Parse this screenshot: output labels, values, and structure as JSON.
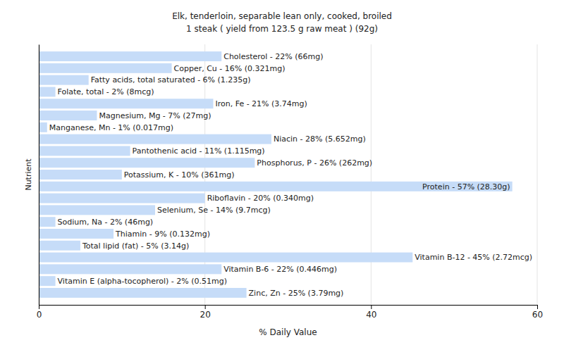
{
  "chart_data": {
    "type": "bar",
    "orientation": "horizontal",
    "title": "Elk, tenderloin, separable lean only, cooked, broiled",
    "subtitle": "1 steak ( yield from 123.5 g raw meat ) (92g)",
    "x_label": "% Daily Value",
    "y_label": "Nutrient",
    "categories": [
      null,
      null,
      null,
      null,
      null,
      null,
      null,
      null,
      null,
      null,
      null,
      null,
      null,
      null,
      null,
      null,
      null,
      null,
      null,
      null,
      null
    ],
    "values": [
      22,
      16,
      6,
      2,
      21,
      7,
      1,
      28,
      11,
      26,
      10,
      57,
      20,
      14,
      2,
      9,
      5,
      45,
      22,
      2,
      25
    ],
    "value_labels": [
      "Cholesterol - 22% (66mg)",
      "Copper, Cu - 16% (0.321mg)",
      "Fatty acids, total saturated - 6% (1.235g)",
      "Folate, total - 2% (8mcg)",
      "Iron, Fe - 21% (3.74mg)",
      "Magnesium, Mg - 7% (27mg)",
      "Manganese, Mn - 1% (0.017mg)",
      "Niacin - 28% (5.652mg)",
      "Pantothenic acid - 11% (1.115mg)",
      "Phosphorus, P - 26% (262mg)",
      "Potassium, K - 10% (361mg)",
      "Protein - 57% (28.30g)",
      "Riboflavin - 20% (0.340mg)",
      "Selenium, Se - 14% (9.7mcg)",
      "Sodium, Na - 2% (46mg)",
      "Thiamin - 9% (0.132mg)",
      "Total lipid (fat) - 5% (3.14g)",
      "Vitamin B-12 - 45% (2.72mcg)",
      "Vitamin B-6 - 22% (0.446mg)",
      "Vitamin E (alpha-tocopherol) - 2% (0.51mg)",
      "Zinc, Zn - 25% (3.79mg)"
    ],
    "data_labels": true,
    "color": "#c6dcf8",
    "xlim": [
      0,
      60
    ],
    "xticks": [
      0,
      20,
      40,
      60
    ],
    "grid": true,
    "tick_labels": "x"
  }
}
